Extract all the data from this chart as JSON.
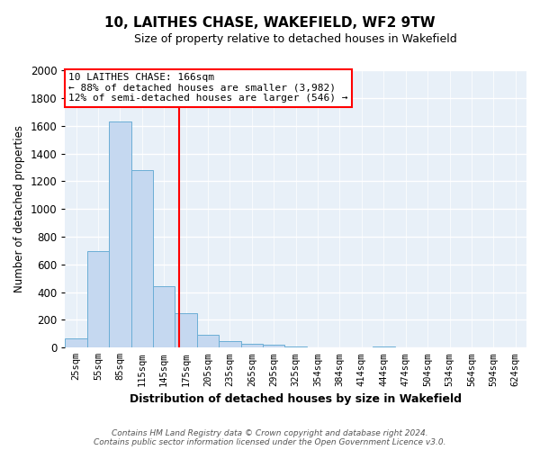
{
  "title": "10, LAITHES CHASE, WAKEFIELD, WF2 9TW",
  "subtitle": "Size of property relative to detached houses in Wakefield",
  "xlabel": "Distribution of detached houses by size in Wakefield",
  "ylabel": "Number of detached properties",
  "bar_color": "#c5d8f0",
  "bar_edge_color": "#6baed6",
  "background_color": "#e8f0f8",
  "grid_color": "#ffffff",
  "ylim": [
    0,
    2000
  ],
  "yticks": [
    0,
    200,
    400,
    600,
    800,
    1000,
    1200,
    1400,
    1600,
    1800,
    2000
  ],
  "bin_labels": [
    "25sqm",
    "55sqm",
    "85sqm",
    "115sqm",
    "145sqm",
    "175sqm",
    "205sqm",
    "235sqm",
    "265sqm",
    "295sqm",
    "325sqm",
    "354sqm",
    "384sqm",
    "414sqm",
    "444sqm",
    "474sqm",
    "504sqm",
    "534sqm",
    "564sqm",
    "594sqm",
    "624sqm"
  ],
  "bar_values": [
    65,
    695,
    1630,
    1280,
    440,
    250,
    90,
    50,
    30,
    20,
    10,
    0,
    0,
    0,
    10,
    0,
    0,
    0,
    0,
    0,
    0
  ],
  "property_label": "10 LAITHES CHASE: 166sqm",
  "annotation_line1": "← 88% of detached houses are smaller (3,982)",
  "annotation_line2": "12% of semi-detached houses are larger (546) →",
  "vline_x_index": 4.7,
  "footer_line1": "Contains HM Land Registry data © Crown copyright and database right 2024.",
  "footer_line2": "Contains public sector information licensed under the Open Government Licence v3.0."
}
